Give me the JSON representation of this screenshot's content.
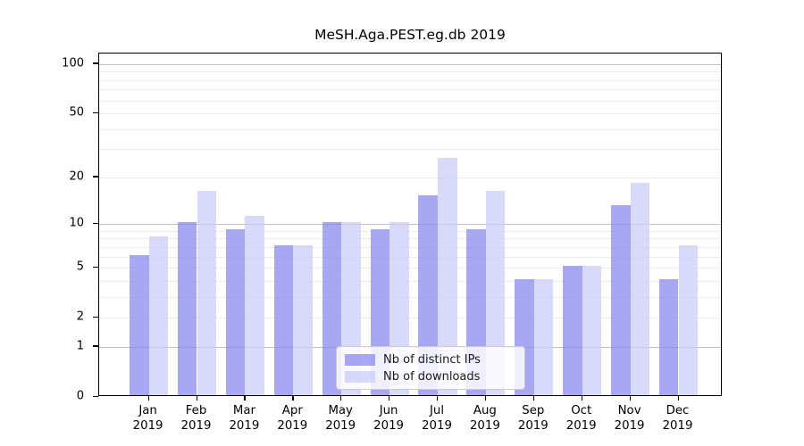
{
  "figure": {
    "background": "#ffffff"
  },
  "chart_data": {
    "type": "bar",
    "title": "MeSH.Aga.PEST.eg.db 2019",
    "categories": [
      "Jan",
      "Feb",
      "Mar",
      "Apr",
      "May",
      "Jun",
      "Jul",
      "Aug",
      "Sep",
      "Oct",
      "Nov",
      "Dec"
    ],
    "x_year": "2019",
    "series": [
      {
        "name": "Nb of distinct IPs",
        "color_solid": "#a7a7f3",
        "fill": "rgba(133,133,238,0.72)",
        "values": [
          6,
          10,
          9,
          7,
          10,
          9,
          15,
          9,
          4,
          5,
          13,
          4
        ]
      },
      {
        "name": "Nb of downloads",
        "color_solid": "#d9d9f9",
        "fill": "rgba(202,202,248,0.72)",
        "values": [
          8,
          16,
          11,
          7,
          10,
          10,
          26,
          16,
          4,
          5,
          18,
          7
        ]
      }
    ],
    "xlabel": "",
    "ylabel": "",
    "y_scale": "log10(1+x)",
    "ylim": [
      0,
      116
    ],
    "y_ticks": [
      0,
      1,
      2,
      5,
      10,
      20,
      50,
      100
    ],
    "gridlines": {
      "major": [
        1,
        10,
        100
      ],
      "minor": [
        2,
        3,
        4,
        5,
        6,
        7,
        8,
        9,
        20,
        30,
        40,
        50,
        60,
        70,
        80,
        90
      ],
      "major_color": "#c2c2c2",
      "minor_color": "#ececec"
    },
    "legend_position": "bottom-center",
    "axis_color": "#000000"
  }
}
